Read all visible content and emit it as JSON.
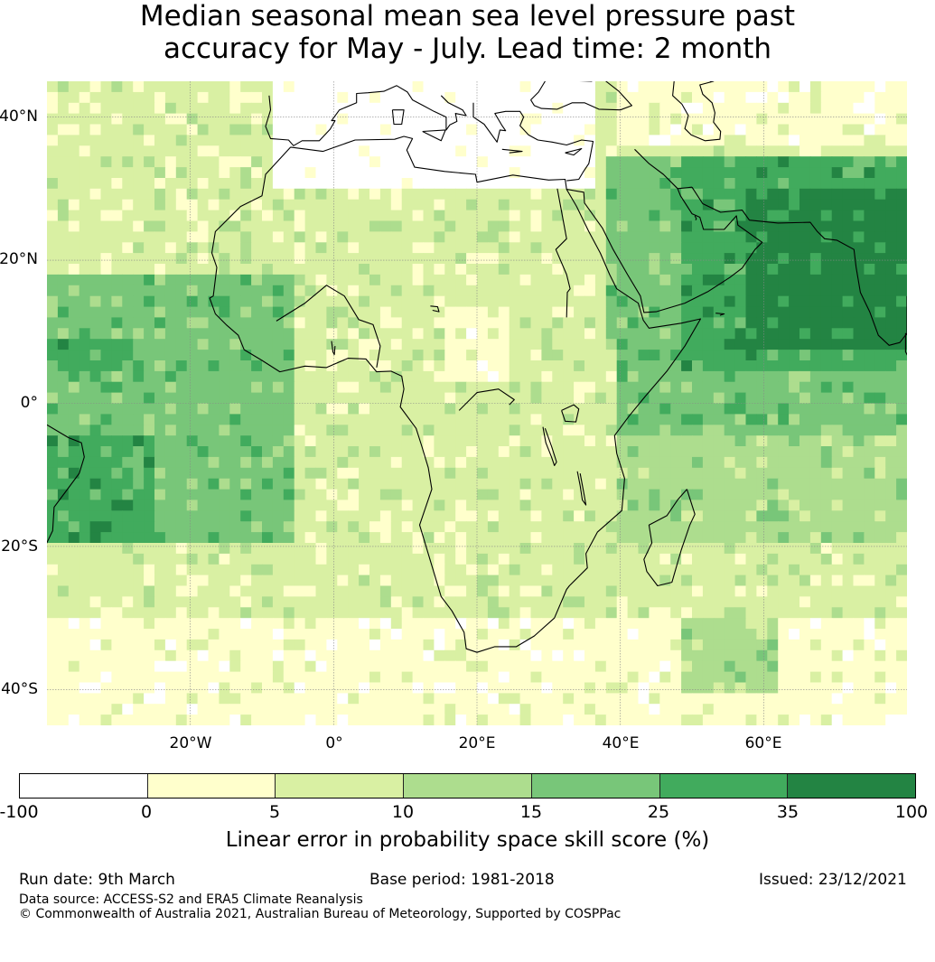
{
  "title": {
    "line1": "Median seasonal mean sea level pressure past",
    "line2": "accuracy for May - July. Lead time: 2 month"
  },
  "map": {
    "lat_labels": [
      "40°N",
      "20°N",
      "0°",
      "20°S",
      "40°S"
    ],
    "lon_labels": [
      "20°W",
      "0°",
      "20°E",
      "40°E",
      "60°E"
    ]
  },
  "colorbar": {
    "colors": [
      "#ffffff",
      "#ffffcc",
      "#d9f0a3",
      "#addd8e",
      "#78c679",
      "#41ab5d",
      "#238443"
    ],
    "ticks": [
      "-100",
      "0",
      "5",
      "10",
      "15",
      "25",
      "35",
      "100"
    ],
    "label": "Linear error in probability space skill score (%)"
  },
  "footer": {
    "run_date": "Run date: 9th March",
    "base_period": "Base period: 1981-2018",
    "issued": "Issued: 23/12/2021",
    "data_source": "Data source: ACCESS-S2 and ERA5 Climate Reanalysis",
    "copyright": "© Commonwealth of Australia 2021, Australian Bureau of Meteorology, Supported by COSPPac"
  }
}
